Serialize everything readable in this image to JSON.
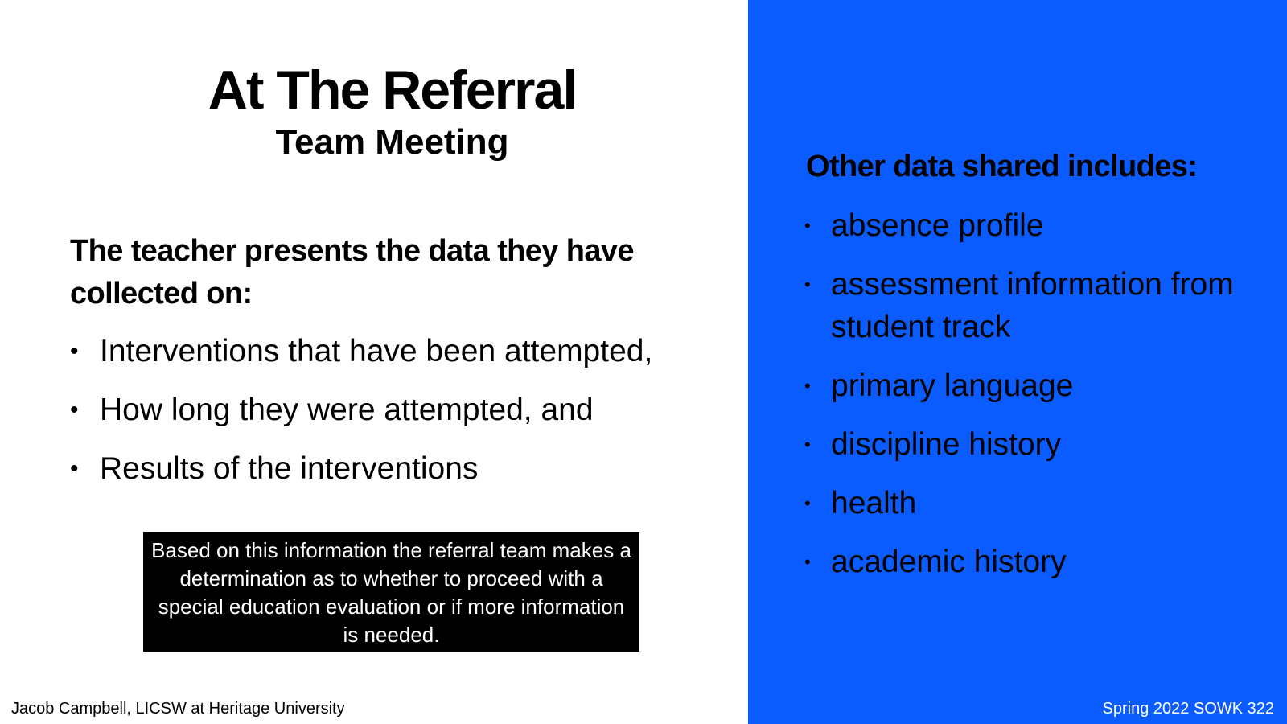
{
  "slide": {
    "title": "At The Referral",
    "subtitle": "Team Meeting",
    "intro": "The teacher presents the data they have collected on:",
    "left_items": [
      "Interventions that have been attempted,",
      "How long they were attempted, and",
      "Results of the interventions"
    ],
    "callout": "Based on this information the referral team makes a determination as to whether to proceed with a special education evaluation or if more information is needed.",
    "footer_left": "Jacob Campbell, LICSW at Heritage University",
    "right_heading": "Other data shared includes:",
    "right_items": [
      "absence profile",
      "assessment information from student track",
      "primary language",
      "discipline history",
      "health",
      "academic history"
    ],
    "footer_right": "Spring 2022 SOWK 322",
    "bullet_char": "•"
  },
  "colors": {
    "right_panel": "#0a5cff",
    "callout_bg": "#000000"
  }
}
